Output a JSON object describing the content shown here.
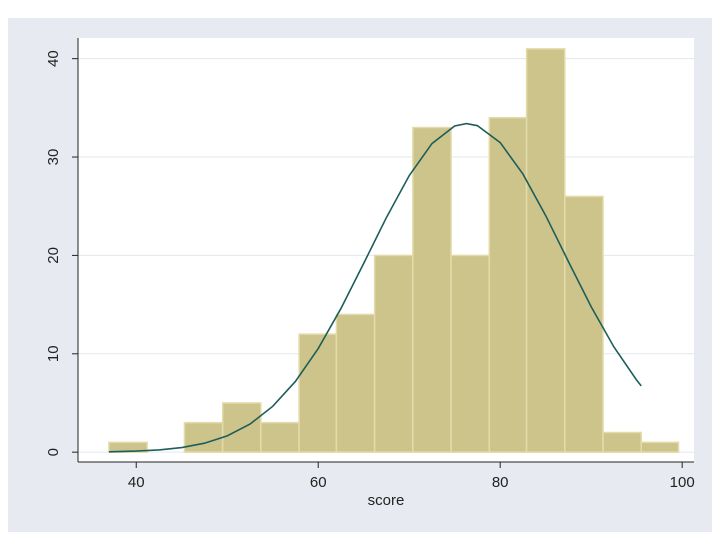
{
  "chart_data": {
    "type": "histogram",
    "xlabel": "score",
    "bins": [
      37.0,
      41.2,
      45.3,
      49.5,
      53.7,
      57.9,
      62.0,
      66.2,
      70.4,
      74.6,
      78.8,
      82.9,
      87.1,
      91.3,
      95.5,
      99.6
    ],
    "counts": [
      1,
      0,
      3,
      5,
      3,
      12,
      14,
      20,
      33,
      20,
      34,
      41,
      26,
      2,
      1
    ],
    "color": "#cdc48b",
    "edgecolor": "#e3dcaa",
    "xlim": [
      33.6,
      101.3
    ],
    "ylim": [
      -1,
      42.1
    ],
    "xticks": [
      40,
      60,
      80,
      100
    ],
    "yticks": [
      0,
      10,
      20,
      30,
      40
    ],
    "grid": true,
    "overlay": {
      "type": "line",
      "color": "#1e5e5a",
      "x": [
        37,
        40,
        42.5,
        45,
        47.5,
        50,
        52.5,
        55,
        57.5,
        60,
        62.5,
        65,
        67.5,
        70,
        72.5,
        75,
        76.3,
        77.5,
        80,
        82.5,
        85,
        87.5,
        90,
        92.5,
        95,
        95.5
      ],
      "values": [
        0.04,
        0.11,
        0.23,
        0.47,
        0.91,
        1.66,
        2.85,
        4.66,
        7.2,
        10.53,
        14.61,
        19.19,
        23.86,
        28.11,
        31.37,
        33.16,
        33.4,
        33.19,
        31.47,
        28.27,
        24.05,
        19.37,
        14.78,
        10.69,
        7.32,
        6.74
      ]
    }
  }
}
